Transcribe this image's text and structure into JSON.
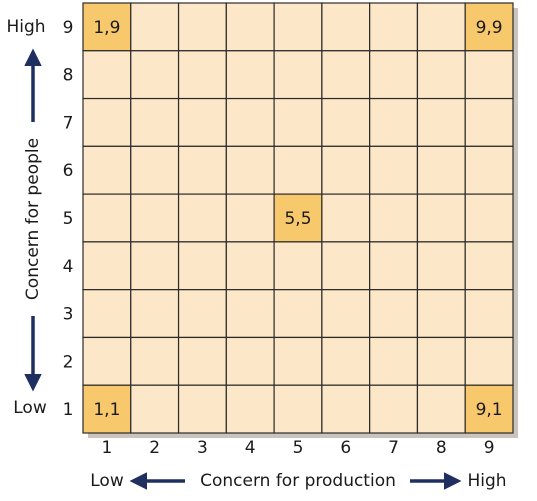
{
  "grid": {
    "columns": [
      "1",
      "2",
      "3",
      "4",
      "5",
      "6",
      "7",
      "8",
      "9"
    ],
    "rows": [
      "9",
      "8",
      "7",
      "6",
      "5",
      "4",
      "3",
      "2",
      "1"
    ],
    "highlighted_cells": [
      "1,9",
      "9,9",
      "5,5",
      "1,1",
      "9,1"
    ]
  },
  "y_axis": {
    "title": "Concern for people",
    "high": "High",
    "low": "Low"
  },
  "x_axis": {
    "title": "Concern for production",
    "low": "Low",
    "high": "High"
  }
}
